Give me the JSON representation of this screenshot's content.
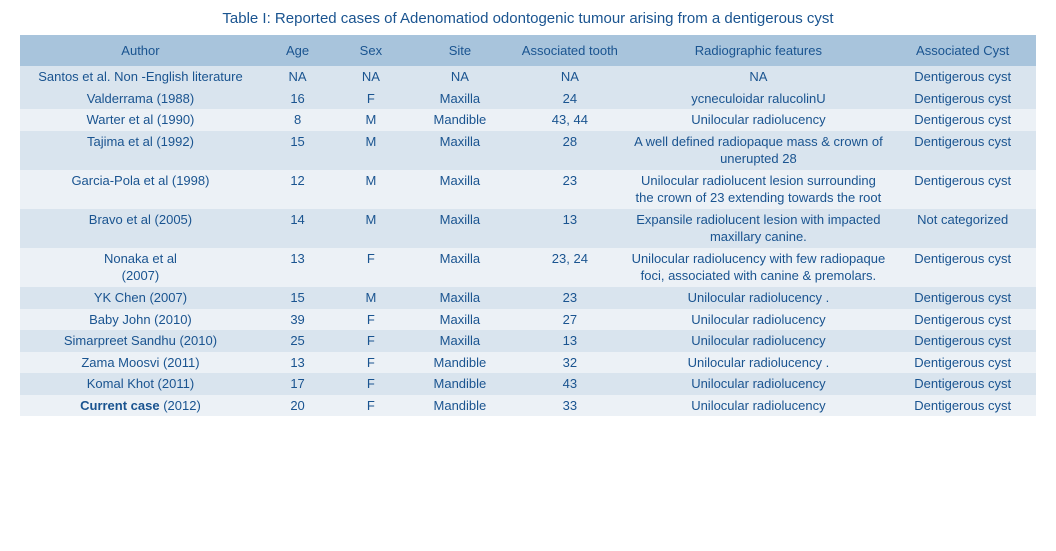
{
  "title": "Table I:  Reported cases of Adenomatiod odontogenic tumour arising from a dentigerous cyst",
  "colors": {
    "text": "#1a5490",
    "header_bg": "#a8c4dc",
    "row_odd_bg": "#d9e4ee",
    "row_even_bg": "#ecf1f6",
    "page_bg": "#ffffff"
  },
  "columns": [
    {
      "key": "author",
      "label": "Author"
    },
    {
      "key": "age",
      "label": "Age"
    },
    {
      "key": "sex",
      "label": "Sex"
    },
    {
      "key": "site",
      "label": "Site"
    },
    {
      "key": "tooth",
      "label": "Associated tooth"
    },
    {
      "key": "radio",
      "label": "Radiographic features"
    },
    {
      "key": "cyst",
      "label": "Associated Cyst"
    }
  ],
  "rows": [
    {
      "author": "Santos et al. Non -English literature",
      "age": "NA",
      "sex": "NA",
      "site": "NA",
      "tooth": "NA",
      "radio": "NA",
      "cyst": "Dentigerous cyst",
      "stripe": "odd"
    },
    {
      "author": "Valderrama  (1988)",
      "age": "16",
      "sex": "F",
      "site": "Maxilla",
      "tooth": "24",
      "radio": "ycneculoidar ralucolinU",
      "cyst": "Dentigerous cyst",
      "stripe": "odd"
    },
    {
      "author": "Warter et al (1990)",
      "age": "8",
      "sex": "M",
      "site": "Mandible",
      "tooth": "43, 44",
      "radio": "Unilocular radiolucency",
      "cyst": "Dentigerous cyst",
      "stripe": "even"
    },
    {
      "author": "Tajima et al (1992)",
      "age": "15",
      "sex": "M",
      "site": "Maxilla",
      "tooth": "28",
      "radio": "A well defined radiopaque mass & crown of unerupted 28",
      "cyst": "Dentigerous cyst",
      "stripe": "odd"
    },
    {
      "author": "Garcia-Pola et al  (1998)",
      "age": "12",
      "sex": "M",
      "site": "Maxilla",
      "tooth": "23",
      "radio": "Unilocular radiolucent lesion surrounding the crown of 23 extending towards the root",
      "cyst": "Dentigerous cyst",
      "stripe": "even"
    },
    {
      "author": "Bravo et al   (2005)",
      "age": "14",
      "sex": "M",
      "site": "Maxilla",
      "tooth": "13",
      "radio": "Expansile radiolucent lesion with impacted maxillary canine.",
      "cyst": "Not categorized",
      "stripe": "odd"
    },
    {
      "author": "Nonaka et al\n(2007)",
      "age": "13",
      "sex": "F",
      "site": "Maxilla",
      "tooth": "23, 24",
      "radio": "Unilocular  radiolucency  with few radiopaque foci, associated with canine & premolars.",
      "cyst": "Dentigerous cyst",
      "stripe": "even"
    },
    {
      "author": "YK Chen  (2007)",
      "age": "15",
      "sex": "M",
      "site": "Maxilla",
      "tooth": "23",
      "radio": "Unilocular radiolucency .",
      "cyst": "Dentigerous cyst",
      "stripe": "odd"
    },
    {
      "author": "Baby John        (2010)",
      "age": "39",
      "sex": "F",
      "site": "Maxilla",
      "tooth": "27",
      "radio": "Unilocular radiolucency",
      "cyst": "Dentigerous cyst",
      "stripe": "even"
    },
    {
      "author": "Simarpreet Sandhu  (2010)",
      "age": "25",
      "sex": "F",
      "site": "Maxilla",
      "tooth": "13",
      "radio": "Unilocular radiolucency",
      "cyst": "Dentigerous cyst",
      "stripe": "odd"
    },
    {
      "author": "Zama Moosvi  (2011)",
      "age": "13",
      "sex": "F",
      "site": "Mandible",
      "tooth": "32",
      "radio": "Unilocular radiolucency .",
      "cyst": "Dentigerous cyst",
      "stripe": "even"
    },
    {
      "author": "Komal Khot (2011)",
      "age": "17",
      "sex": "F",
      "site": "Mandible",
      "tooth": "43",
      "radio": "Unilocular radiolucency",
      "cyst": "Dentigerous cyst",
      "stripe": "odd"
    },
    {
      "author_prefix": "Current case   ",
      "author_suffix": "(2012)",
      "age": "20",
      "sex": "F",
      "site": "Mandible",
      "tooth": "33",
      "radio": "Unilocular radiolucency",
      "cyst": "Dentigerous cyst",
      "stripe": "even",
      "bold_prefix": true
    }
  ]
}
